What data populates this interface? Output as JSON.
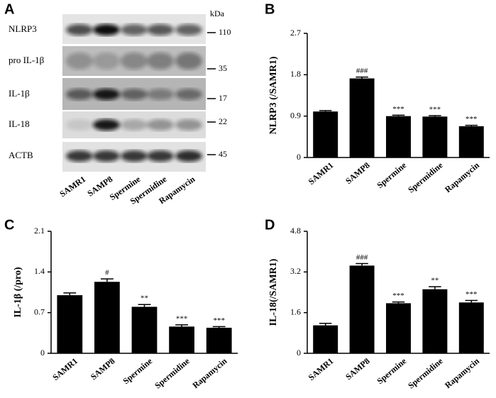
{
  "blot": {
    "panel": "A",
    "unit": "kDa",
    "rows": [
      {
        "label": "NLRP3",
        "mw": "110"
      },
      {
        "label": "pro IL-1β",
        "mw": "35"
      },
      {
        "label": "IL-1β",
        "mw": "17"
      },
      {
        "label": "IL-18",
        "mw": "22"
      },
      {
        "label": "ACTB",
        "mw": "45"
      }
    ],
    "lanes": [
      "SAMR1",
      "SAMP8",
      "Spermine",
      "Spermidine",
      "Rapamycin"
    ]
  },
  "chart_data": [
    {
      "type": "bar",
      "panel": "B",
      "y_label": "NLRP3 (/SAMR1)",
      "color": "#000000",
      "categories": [
        "SAMR1",
        "SAMP8",
        "Spermine",
        "Spermidine",
        "Rapamycin"
      ],
      "values": [
        1.0,
        1.72,
        0.9,
        0.89,
        0.68
      ],
      "errors": [
        0.02,
        0.03,
        0.02,
        0.02,
        0.02
      ],
      "annotations": [
        null,
        "###",
        "***",
        "***",
        "***"
      ],
      "ylim": [
        0,
        2.7
      ],
      "yticks": [
        0,
        0.9,
        1.8,
        2.7
      ]
    },
    {
      "type": "bar",
      "panel": "C",
      "y_label": "IL-1β (/pro)",
      "color": "#000000",
      "categories": [
        "SAMR1",
        "SAMP8",
        "Spermine",
        "Spermidine",
        "Rapamycin"
      ],
      "values": [
        1.0,
        1.23,
        0.8,
        0.46,
        0.44
      ],
      "errors": [
        0.04,
        0.05,
        0.04,
        0.03,
        0.02
      ],
      "annotations": [
        null,
        "#",
        "**",
        "***",
        "***"
      ],
      "ylim": [
        0,
        2.1
      ],
      "yticks": [
        0,
        0.7,
        1.4,
        2.1
      ]
    },
    {
      "type": "bar",
      "panel": "D",
      "y_label": "IL-18(/SAMR1)",
      "color": "#000000",
      "categories": [
        "SAMR1",
        "SAMP8",
        "Spermine",
        "Spermidine",
        "Rapamycin"
      ],
      "values": [
        1.1,
        3.45,
        1.97,
        2.52,
        2.0
      ],
      "errors": [
        0.08,
        0.08,
        0.05,
        0.1,
        0.08
      ],
      "annotations": [
        null,
        "###",
        "***",
        "**",
        "***"
      ],
      "ylim": [
        0,
        4.8
      ],
      "yticks": [
        0,
        1.6,
        3.2,
        4.8
      ]
    }
  ]
}
